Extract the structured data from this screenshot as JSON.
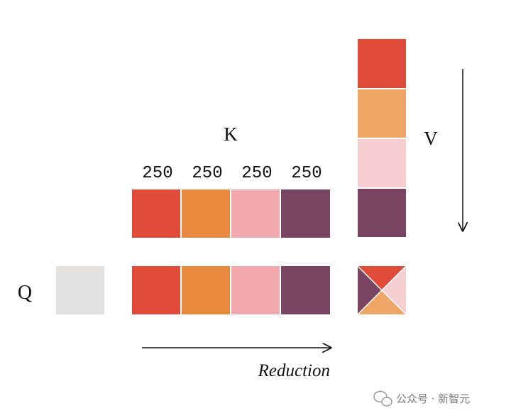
{
  "labels": {
    "k": "K",
    "v": "V",
    "q": "Q",
    "reduction": "Reduction"
  },
  "k_block_sizes": [
    250,
    250,
    250,
    250
  ],
  "watermark": "公众号 · 新智元"
}
